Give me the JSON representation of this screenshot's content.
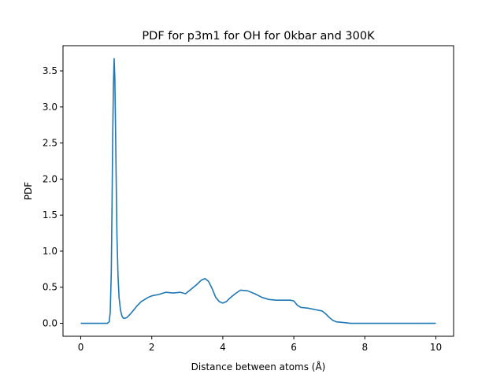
{
  "chart_data": {
    "type": "line",
    "title": "PDF for p3m1 for OH for 0kbar and 300K",
    "xlabel": "Distance between atoms (Å)",
    "ylabel": "PDF",
    "xlim": [
      -0.5,
      10.5
    ],
    "ylim": [
      -0.18,
      3.85
    ],
    "xticks": [
      "0",
      "2",
      "4",
      "6",
      "8",
      "10"
    ],
    "yticks": [
      "0.0",
      "0.5",
      "1.0",
      "1.5",
      "2.0",
      "2.5",
      "3.0",
      "3.5"
    ],
    "grid": false,
    "legend": "none",
    "series": [
      {
        "color": "#1f77b4",
        "x": [
          0,
          0.5,
          0.75,
          0.8,
          0.83,
          0.86,
          0.88,
          0.9,
          0.92,
          0.94,
          0.96,
          0.98,
          1.0,
          1.02,
          1.05,
          1.08,
          1.12,
          1.16,
          1.2,
          1.25,
          1.3,
          1.4,
          1.5,
          1.6,
          1.7,
          1.8,
          1.9,
          2.0,
          2.2,
          2.4,
          2.6,
          2.8,
          2.95,
          3.1,
          3.25,
          3.4,
          3.5,
          3.6,
          3.7,
          3.8,
          3.9,
          4.0,
          4.1,
          4.2,
          4.35,
          4.5,
          4.7,
          4.9,
          5.1,
          5.3,
          5.5,
          5.7,
          5.9,
          6.0,
          6.1,
          6.2,
          6.4,
          6.6,
          6.8,
          6.9,
          7.0,
          7.1,
          7.2,
          7.4,
          7.6,
          7.8,
          8.0,
          9.0,
          10.0
        ],
        "y": [
          0.0,
          0.0,
          0.0,
          0.02,
          0.15,
          0.7,
          1.6,
          2.6,
          3.3,
          3.67,
          3.4,
          2.7,
          1.9,
          1.2,
          0.65,
          0.35,
          0.18,
          0.1,
          0.07,
          0.07,
          0.08,
          0.13,
          0.19,
          0.25,
          0.3,
          0.33,
          0.36,
          0.38,
          0.4,
          0.43,
          0.42,
          0.43,
          0.41,
          0.47,
          0.53,
          0.6,
          0.62,
          0.58,
          0.48,
          0.36,
          0.3,
          0.28,
          0.3,
          0.35,
          0.41,
          0.46,
          0.45,
          0.41,
          0.36,
          0.33,
          0.32,
          0.32,
          0.32,
          0.31,
          0.25,
          0.22,
          0.21,
          0.19,
          0.17,
          0.13,
          0.08,
          0.04,
          0.02,
          0.01,
          0.0,
          0.0,
          0.0,
          0.0,
          0.0
        ]
      }
    ]
  }
}
